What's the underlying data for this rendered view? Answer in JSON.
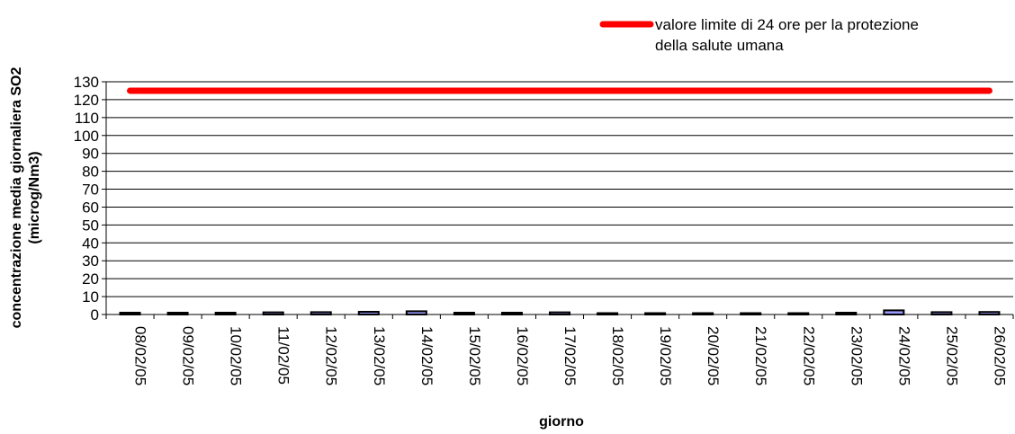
{
  "chart_data": {
    "type": "bar",
    "categories": [
      "08/02/05",
      "09/02/05",
      "10/02/05",
      "11/02/05",
      "12/02/05",
      "13/02/05",
      "14/02/05",
      "15/02/05",
      "16/02/05",
      "17/02/05",
      "18/02/05",
      "19/02/05",
      "20/02/05",
      "21/02/05",
      "22/02/05",
      "23/02/05",
      "24/02/05",
      "25/02/05",
      "26/02/05"
    ],
    "series": [
      {
        "values": [
          1,
          1,
          1,
          1.2,
          1.3,
          1.5,
          1.8,
          1,
          1,
          1.2,
          0.3,
          0.2,
          0.3,
          0.2,
          0.2,
          1,
          2.3,
          1.3,
          1.4
        ],
        "color": "#9999ff"
      },
      {
        "name": "valore limite di 24 ore per la protezione della salute umana",
        "values": [
          125,
          125,
          125,
          125,
          125,
          125,
          125,
          125,
          125,
          125,
          125,
          125,
          125,
          125,
          125,
          125,
          125,
          125,
          125
        ],
        "color": "#ff0000",
        "type": "line"
      }
    ],
    "legend": {
      "line1": "valore limite di 24 ore per la protezione",
      "line2": "della salute umana",
      "placement": "top-right"
    },
    "xlabel": "giorno",
    "ylabel_line1": "concentrazione media giornaliera SO2",
    "ylabel_line2": "(microg/Nm3)",
    "ylim": [
      0,
      130
    ],
    "yticks": [
      0,
      10,
      20,
      30,
      40,
      50,
      60,
      70,
      80,
      90,
      100,
      110,
      120,
      130
    ],
    "grid": true
  }
}
